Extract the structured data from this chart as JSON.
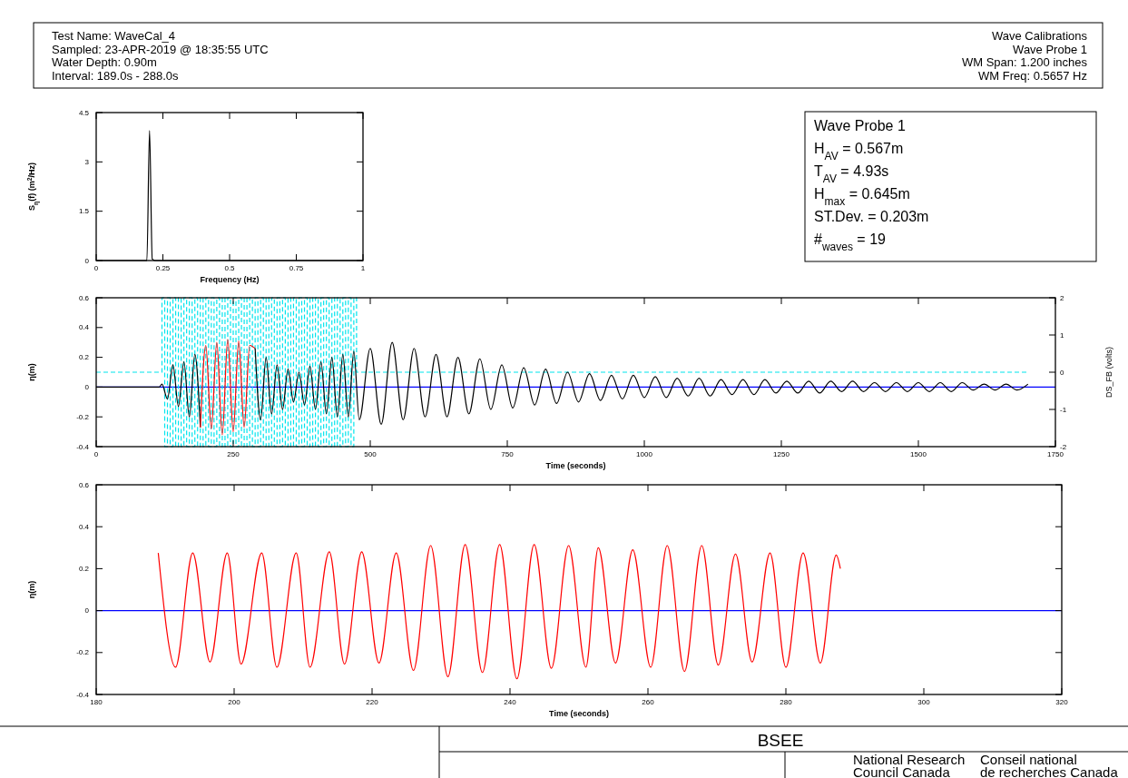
{
  "chart_data": [
    {
      "type": "line",
      "ylabel": "S$_{η}$(f) (m$^{2}$/Hz)",
      "xlabel": "Frequency (Hz)",
      "xlim": [
        0,
        1
      ],
      "xticks": [
        0,
        0.25,
        0.5,
        0.75,
        1
      ],
      "ylim": [
        0,
        4.5
      ],
      "yticks": [
        0,
        1.5,
        3,
        4.5
      ],
      "grid": false,
      "series": [
        {
          "color": "#000000",
          "x": [
            0,
            0.19,
            0.2,
            0.21,
            0.22,
            1
          ],
          "values": [
            0,
            0,
            3.95,
            0.05,
            0,
            0
          ]
        }
      ]
    },
    {
      "type": "line",
      "xlabel": "Time (seconds)",
      "ylabel": "η(m)",
      "y2label": "DS_FB (volts)",
      "xlim": [
        0,
        1750
      ],
      "xticks": [
        0,
        250,
        500,
        750,
        1000,
        1250,
        1500,
        1750
      ],
      "ylim": [
        -0.4,
        0.6
      ],
      "yticks": [
        -0.4,
        -0.2,
        0,
        0.2,
        0.4,
        0.6
      ],
      "y2lim": [
        -2,
        2
      ],
      "y2ticks": [
        -2,
        -1,
        0,
        1,
        2
      ],
      "grid": false,
      "line_style": "solid",
      "ref_lines": [
        {
          "axis": "y",
          "value": 0,
          "color": "#0000ff"
        }
      ],
      "series": [
        {
          "type": "step",
          "axis": "y2",
          "color": "#00e5ee",
          "line_style": "dashed",
          "x": [
            0,
            120,
            125,
            130,
            135,
            140,
            145,
            150,
            155,
            160,
            165,
            170,
            175,
            180,
            185,
            190,
            195,
            200,
            205,
            210,
            215,
            220,
            225,
            230,
            235,
            240,
            245,
            250,
            255,
            260,
            265,
            270,
            275,
            280,
            285,
            290,
            295,
            300,
            305,
            310,
            315,
            320,
            325,
            330,
            335,
            340,
            345,
            350,
            355,
            360,
            365,
            370,
            375,
            380,
            385,
            390,
            395,
            400,
            405,
            410,
            415,
            420,
            425,
            430,
            435,
            440,
            445,
            450,
            455,
            460,
            465,
            470,
            475,
            1700
          ],
          "values": [
            0,
            2,
            -2,
            2,
            -2,
            2,
            -2,
            2,
            -2,
            2,
            -2,
            2,
            -2,
            2,
            -2,
            2,
            -2,
            2,
            -2,
            2,
            -2,
            2,
            -2,
            2,
            -2,
            2,
            -2,
            2,
            -2,
            2,
            -2,
            2,
            -2,
            2,
            -2,
            2,
            -2,
            2,
            -2,
            2,
            -2,
            2,
            -2,
            2,
            -2,
            2,
            -2,
            2,
            -2,
            2,
            -2,
            2,
            -2,
            2,
            -2,
            2,
            -2,
            2,
            -2,
            2,
            -2,
            2,
            -2,
            2,
            -2,
            2,
            -2,
            2,
            -2,
            2,
            -2,
            2,
            0,
            0
          ]
        },
        {
          "color": "#000000",
          "x": [
            0,
            115,
            120,
            130,
            140,
            150,
            160,
            170,
            180,
            190,
            200,
            210,
            220,
            230,
            240,
            250,
            260,
            270,
            280,
            290,
            300,
            310,
            320,
            330,
            340,
            350,
            360,
            370,
            380,
            390,
            400,
            410,
            420,
            430,
            440,
            450,
            460,
            470,
            480,
            500,
            520,
            540,
            560,
            580,
            600,
            620,
            640,
            660,
            680,
            700,
            720,
            740,
            760,
            780,
            800,
            820,
            840,
            860,
            880,
            900,
            920,
            940,
            960,
            980,
            1000,
            1020,
            1040,
            1060,
            1080,
            1100,
            1120,
            1140,
            1160,
            1180,
            1200,
            1220,
            1240,
            1260,
            1280,
            1300,
            1320,
            1340,
            1360,
            1380,
            1400,
            1420,
            1440,
            1460,
            1480,
            1500,
            1520,
            1540,
            1560,
            1580,
            1600,
            1620,
            1640,
            1660,
            1680,
            1700
          ],
          "values": [
            0,
            0,
            0.02,
            -0.08,
            0.15,
            -0.13,
            0.17,
            -0.2,
            0.22,
            -0.27,
            null,
            null,
            null,
            null,
            null,
            null,
            null,
            null,
            null,
            0.26,
            -0.22,
            0.2,
            -0.18,
            0.15,
            -0.15,
            0.12,
            -0.1,
            0.1,
            -0.12,
            0.14,
            -0.15,
            0.17,
            -0.18,
            0.2,
            -0.2,
            0.22,
            -0.2,
            0.24,
            -0.22,
            0.26,
            -0.25,
            0.3,
            -0.22,
            0.26,
            -0.2,
            0.22,
            -0.2,
            0.2,
            -0.18,
            0.19,
            -0.15,
            0.15,
            -0.14,
            0.13,
            -0.12,
            0.12,
            -0.11,
            0.1,
            -0.1,
            0.09,
            -0.09,
            0.08,
            -0.08,
            0.08,
            -0.07,
            0.07,
            -0.07,
            0.06,
            -0.06,
            0.06,
            -0.06,
            0.05,
            -0.05,
            0.05,
            -0.05,
            0.05,
            -0.04,
            0.04,
            -0.04,
            0.04,
            -0.04,
            0.04,
            -0.03,
            0.04,
            -0.03,
            0.03,
            -0.03,
            0.03,
            -0.03,
            0.03,
            -0.03,
            0.03,
            -0.03,
            0.03,
            -0.02,
            0.02,
            -0.02,
            0.02,
            -0.02,
            0.02
          ]
        },
        {
          "color": "#ff0000",
          "x": [
            190,
            200,
            210,
            220,
            230,
            240,
            250,
            260,
            270,
            280,
            290
          ],
          "values": [
            -0.27,
            0.28,
            -0.28,
            0.3,
            -0.32,
            0.32,
            -0.3,
            0.31,
            -0.27,
            0.28,
            0.26
          ]
        }
      ]
    },
    {
      "type": "line",
      "xlabel": "Time (seconds)",
      "ylabel": "η(m)",
      "xlim": [
        180,
        320
      ],
      "xticks": [
        180,
        200,
        220,
        240,
        260,
        280,
        300,
        320
      ],
      "ylim": [
        -0.4,
        0.6
      ],
      "yticks": [
        -0.4,
        -0.2,
        0,
        0.2,
        0.4,
        0.6
      ],
      "grid": false,
      "ref_lines": [
        {
          "axis": "y",
          "value": 0,
          "color": "#0000ff"
        }
      ],
      "series": [
        {
          "color": "#ff0000",
          "x": [
            189,
            191.5,
            194,
            196.5,
            199,
            201,
            204,
            206.2,
            209,
            211,
            213.8,
            216,
            218.5,
            221,
            223.5,
            226,
            228.5,
            231,
            233.5,
            236,
            238.5,
            241,
            243.5,
            246,
            248.5,
            251,
            252.8,
            255.3,
            257.8,
            260.4,
            262.8,
            265.3,
            267.8,
            270.2,
            272.7,
            275.1,
            277.7,
            280,
            282.5,
            285,
            287.3,
            287.9
          ],
          "values": [
            0.275,
            -0.27,
            0.275,
            -0.245,
            0.275,
            -0.255,
            0.275,
            -0.27,
            0.275,
            -0.27,
            0.28,
            -0.255,
            0.28,
            -0.25,
            0.275,
            -0.285,
            0.31,
            -0.315,
            0.315,
            -0.295,
            0.315,
            -0.325,
            0.315,
            -0.275,
            0.31,
            -0.27,
            0.3,
            -0.25,
            0.29,
            -0.27,
            0.31,
            -0.29,
            0.31,
            -0.26,
            0.27,
            -0.245,
            0.275,
            -0.27,
            0.275,
            -0.25,
            0.265,
            0.2
          ]
        }
      ]
    },
    {
      "type": "other",
      "annotations": [
        "Test Name: WaveCal_4",
        "Sampled: 23-APR-2019 @ 18:35:55 UTC",
        "Water Depth: 0.90m",
        "Interval: 189.0s - 288.0s",
        "Wave Calibrations",
        "Wave Probe 1",
        "WM Span: 1.200 inches",
        "WM Freq: 0.5657 Hz",
        "Wave Probe 1",
        "H$_{AV}$ = 0.567m",
        "T$_{AV}$ = 4.93s",
        "H$_{max}$ = 0.645m",
        "ST.Dev. = 0.203m",
        "#$_{waves}$ = 19",
        "BSEE",
        "National Research",
        "Council Canada",
        "Conseil national",
        "de recherches Canada"
      ]
    }
  ]
}
